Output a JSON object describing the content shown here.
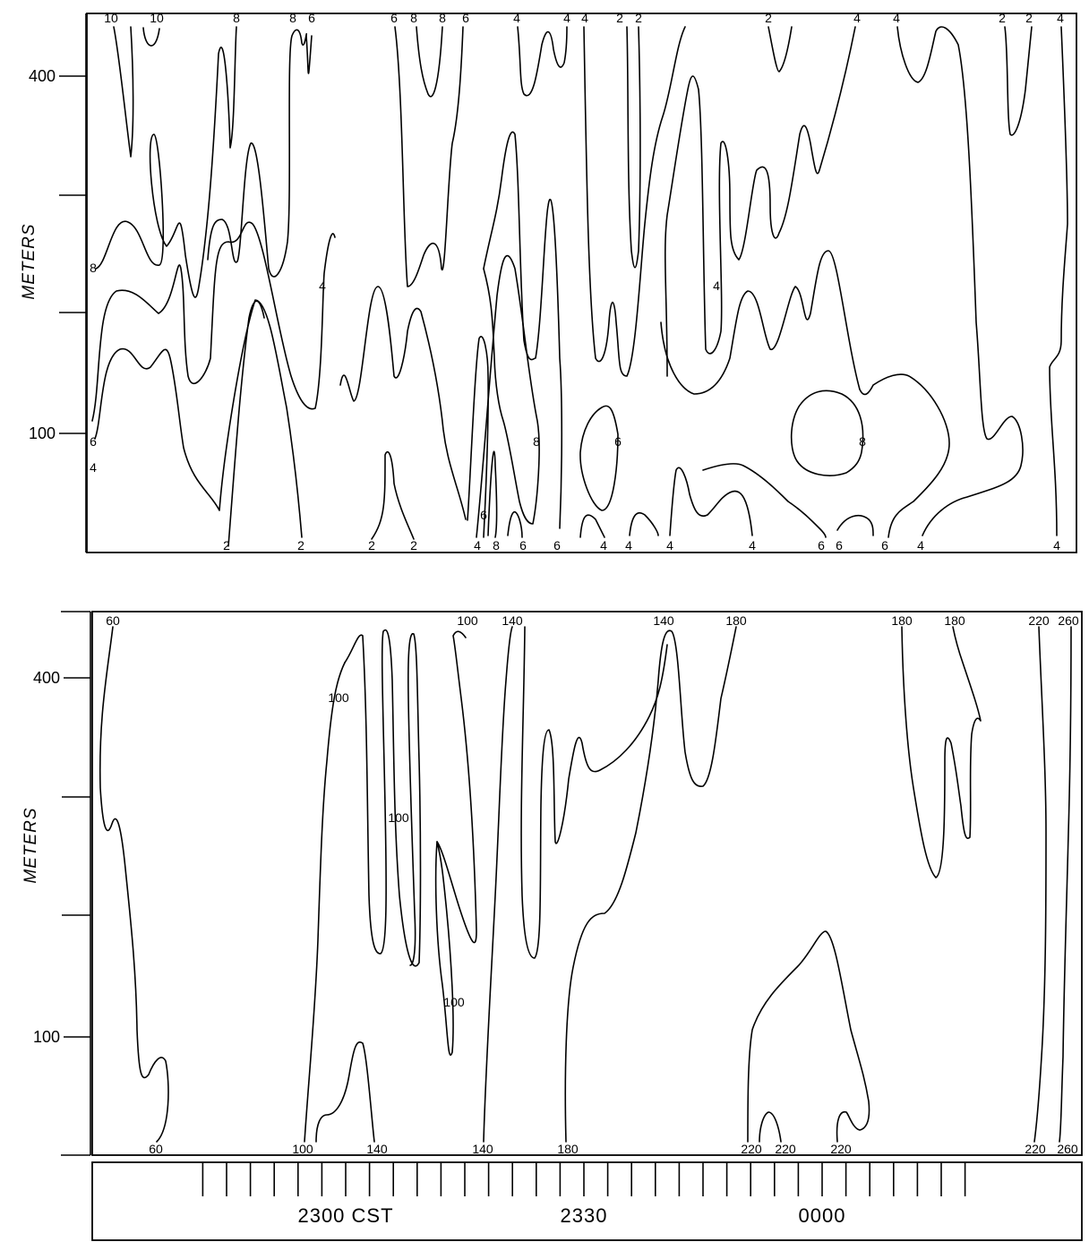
{
  "chart_data": [
    {
      "type": "contour",
      "ylabel": "METERS",
      "yticks": [
        {
          "value": 100,
          "label": "100"
        },
        {
          "value": 400,
          "label": "400"
        }
      ],
      "ylim": [
        0,
        450
      ],
      "contour_labels_top": [
        "10",
        "10",
        "8",
        "8",
        "6",
        "6",
        "8",
        "8",
        "6",
        "4",
        "4",
        "4",
        "2",
        "2",
        "2",
        "4",
        "4",
        "2",
        "2",
        "4"
      ],
      "contour_labels_bottom": [
        "2",
        "2",
        "2",
        "2",
        "4",
        "8",
        "6",
        "6",
        "4",
        "4",
        "4",
        "4",
        "6",
        "6",
        "6",
        "4",
        "4"
      ],
      "contour_labels_inner": [
        "8",
        "6",
        "4",
        "4",
        "6",
        "8",
        "6",
        "8",
        "4"
      ]
    },
    {
      "type": "contour",
      "ylabel": "METERS",
      "yticks": [
        {
          "value": 100,
          "label": "100"
        },
        {
          "value": 400,
          "label": "400"
        }
      ],
      "ylim": [
        0,
        450
      ],
      "contour_labels_top": [
        "60",
        "100",
        "140",
        "140",
        "180",
        "180",
        "180",
        "220",
        "260"
      ],
      "contour_labels_bottom": [
        "60",
        "100",
        "140",
        "140",
        "180",
        "220",
        "220",
        "220",
        "220",
        "260"
      ],
      "contour_labels_inner": [
        "100",
        "100",
        "100"
      ]
    }
  ],
  "time_axis": {
    "labels": [
      {
        "time_min": -6,
        "label": "2300 CST"
      },
      {
        "time_min": 24,
        "label": "2330"
      },
      {
        "time_min": 54,
        "label": "0000"
      }
    ],
    "tick_interval_min": 3
  }
}
